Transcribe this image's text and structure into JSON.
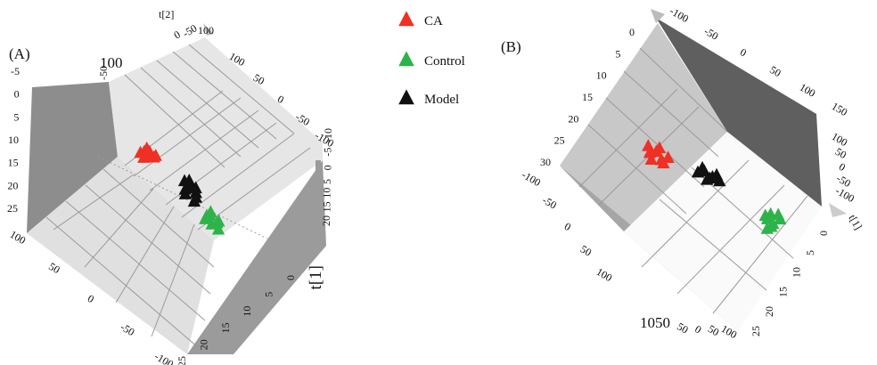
{
  "legend": [
    {
      "label": "CA",
      "color": "#ee3124"
    },
    {
      "label": "Control",
      "color": "#2db34a"
    },
    {
      "label": "Model",
      "color": "#111111"
    }
  ],
  "chart_data": [
    {
      "type": "scatter",
      "panel_label": "(A)",
      "axes": {
        "t2_label": "t[2]",
        "t1_label": "t[1]",
        "t3_ticks_left": [
          "25",
          "20",
          "15",
          "10",
          "5",
          "0",
          "-5"
        ],
        "t1_ticks_left": [
          "100",
          "50",
          "0",
          "-50",
          "-100"
        ],
        "t3_ticks_bottom": [
          "25",
          "20",
          "15",
          "10",
          "5",
          "0"
        ],
        "t2_ticks_top": [
          "100",
          "50",
          "0",
          "-50",
          "-100"
        ],
        "t3_ticks_right": [
          "-10",
          "-5",
          "0",
          "5",
          "10",
          "15",
          "20"
        ],
        "t2_top_marks": [
          "0",
          "-50",
          "100"
        ],
        "t1_top_mark": "100",
        "t1_top_mark_b": "-50",
        "right_stack": [
          "-100",
          "-50",
          "0",
          "50",
          "100"
        ]
      },
      "series": [
        {
          "name": "CA",
          "color": "#ee3124",
          "points": [
            [
              -40,
              10
            ],
            [
              -35,
              12
            ],
            [
              -32,
              9
            ],
            [
              -28,
              14
            ],
            [
              -25,
              11
            ],
            [
              -30,
              16
            ],
            [
              -22,
              13
            ],
            [
              -38,
              7
            ]
          ]
        },
        {
          "name": "Model",
          "color": "#111111",
          "points": [
            [
              0,
              -5
            ],
            [
              5,
              -2
            ],
            [
              10,
              -8
            ],
            [
              3,
              2
            ],
            [
              8,
              -1
            ],
            [
              12,
              -4
            ],
            [
              -2,
              -9
            ],
            [
              6,
              -12
            ],
            [
              14,
              0
            ],
            [
              9,
              4
            ]
          ]
        },
        {
          "name": "Control",
          "color": "#2db34a",
          "points": [
            [
              15,
              -20
            ],
            [
              20,
              -18
            ],
            [
              25,
              -22
            ],
            [
              18,
              -25
            ],
            [
              22,
              -15
            ],
            [
              28,
              -20
            ],
            [
              12,
              -23
            ],
            [
              24,
              -27
            ]
          ]
        }
      ]
    },
    {
      "type": "scatter",
      "panel_label": "(B)",
      "axes": {
        "t1_label": "t[1]",
        "t3_ticks_left": [
          "30",
          "25",
          "20",
          "15",
          "10",
          "5",
          "0"
        ],
        "t2_ticks_left": [
          "-100",
          "-50",
          "0",
          "50",
          "100"
        ],
        "t2_ticks_top": [
          "-100",
          "-50",
          "0",
          "50",
          "100",
          "150"
        ],
        "t2_ticks_right": [
          "100",
          "50",
          "0",
          "-50",
          "-100"
        ],
        "t3_ticks_right": [
          "0",
          "5",
          "10",
          "15",
          "20",
          "25"
        ],
        "bottom_marks": [
          "100",
          "100",
          "50",
          "0",
          "50",
          "100"
        ],
        "bottom_big": "1050"
      },
      "series": [
        {
          "name": "CA",
          "color": "#ee3124",
          "points": [
            [
              -40,
              5
            ],
            [
              -35,
              8
            ],
            [
              -30,
              3
            ],
            [
              -25,
              7
            ],
            [
              -42,
              10
            ],
            [
              -33,
              12
            ],
            [
              -28,
              1
            ],
            [
              -38,
              0
            ]
          ]
        },
        {
          "name": "Model",
          "color": "#111111",
          "points": [
            [
              0,
              5
            ],
            [
              5,
              8
            ],
            [
              10,
              4
            ],
            [
              15,
              9
            ],
            [
              8,
              2
            ],
            [
              12,
              6
            ],
            [
              3,
              10
            ],
            [
              18,
              5
            ]
          ]
        },
        {
          "name": "Control",
          "color": "#2db34a",
          "points": [
            [
              60,
              -10
            ],
            [
              62,
              -5
            ],
            [
              65,
              -12
            ],
            [
              58,
              -8
            ],
            [
              68,
              -3
            ],
            [
              64,
              -15
            ],
            [
              61,
              -18
            ],
            [
              70,
              -6
            ]
          ]
        }
      ]
    }
  ]
}
